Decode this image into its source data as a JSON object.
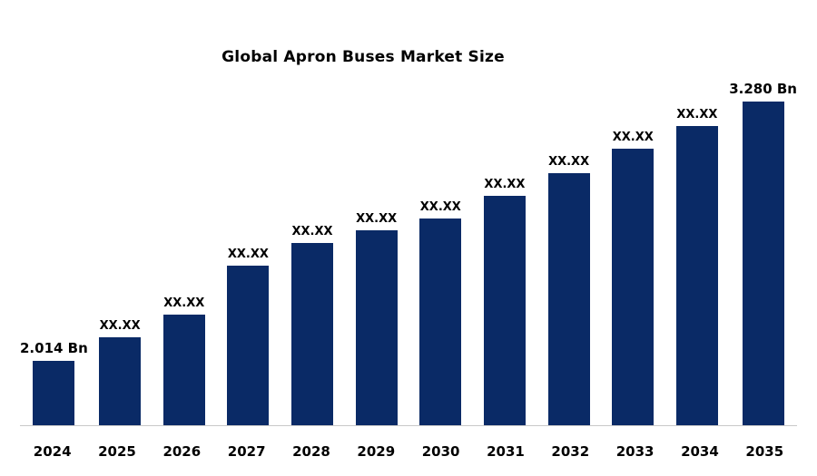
{
  "chart_data": {
    "type": "bar",
    "title": "Global Apron Buses Market Size",
    "categories": [
      "2024",
      "2025",
      "2026",
      "2027",
      "2028",
      "2029",
      "2030",
      "2031",
      "2032",
      "2033",
      "2034",
      "2035"
    ],
    "values": [
      2.014,
      2.13,
      2.24,
      2.48,
      2.59,
      2.65,
      2.71,
      2.82,
      2.93,
      3.05,
      3.16,
      3.28
    ],
    "bar_labels": [
      "2.014 Bn",
      "XX.XX",
      "XX.XX",
      "XX.XX",
      "XX.XX",
      "XX.XX",
      "XX.XX",
      "XX.XX",
      "XX.XX",
      "XX.XX",
      "XX.XX",
      "3.280 Bn"
    ],
    "unit": "Bn",
    "ylim": [
      1.7,
      3.4
    ],
    "bar_color": "#0a2a66",
    "axis_line_color": "#c8c8c8",
    "grid": false,
    "legend": false
  }
}
